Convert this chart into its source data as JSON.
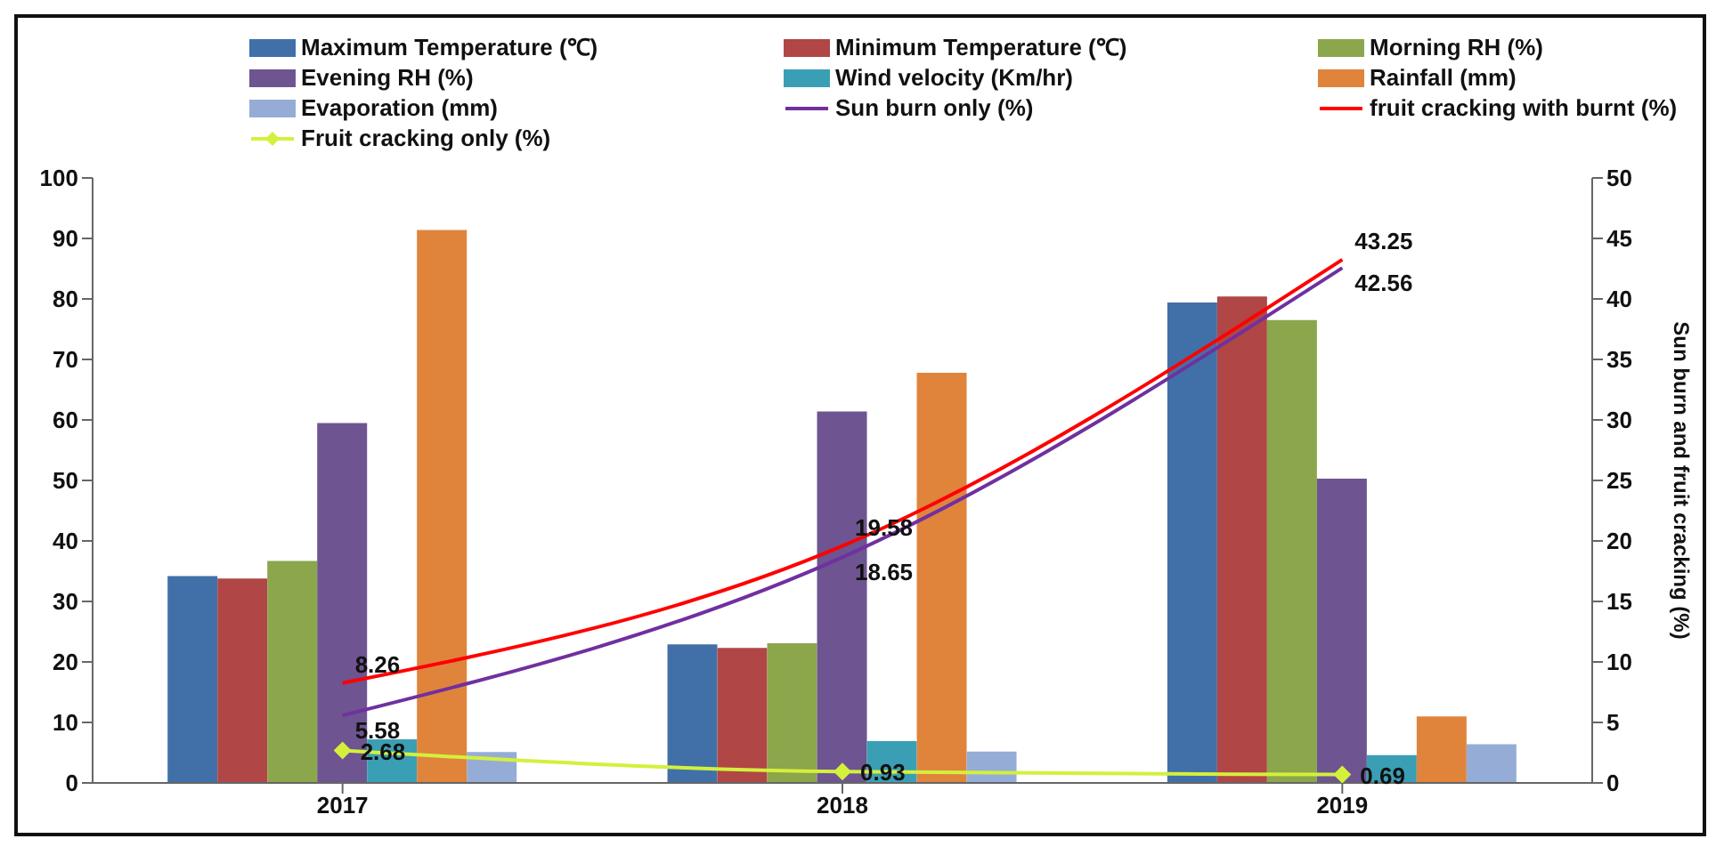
{
  "chart_data": {
    "type": "bar",
    "y2label": "Sun burn and fruit cracking (%)",
    "categories": [
      "2017",
      "2018",
      "2019"
    ],
    "ylim": [
      0,
      100
    ],
    "yticks": [
      0,
      10,
      20,
      30,
      40,
      50,
      60,
      70,
      80,
      90,
      100
    ],
    "y2lim": [
      0,
      50
    ],
    "y2ticks": [
      0,
      5,
      10,
      15,
      20,
      25,
      30,
      35,
      40,
      45,
      50
    ],
    "grid": false,
    "legend": "top",
    "series": [
      {
        "name": "Maximum Temperature (℃)",
        "color": "#4170a8",
        "values": [
          34.2,
          22.9,
          79.4
        ]
      },
      {
        "name": "Minimum Temperature (℃)",
        "color": "#b04645",
        "values": [
          33.8,
          22.3,
          80.4
        ]
      },
      {
        "name": "Morning RH (%)",
        "color": "#8ca64c",
        "values": [
          36.7,
          23.1,
          76.5
        ]
      },
      {
        "name": "Evening RH (%)",
        "color": "#6e5490",
        "values": [
          59.5,
          61.4,
          50.3
        ]
      },
      {
        "name": "Wind velocity (Km/hr)",
        "color": "#3a9fb5",
        "values": [
          7.2,
          6.9,
          4.6
        ]
      },
      {
        "name": "Rainfall (mm)",
        "color": "#e0843c",
        "values": [
          91.4,
          67.8,
          11.0
        ]
      },
      {
        "name": "Evaporation (mm)",
        "color": "#95add6",
        "values": [
          5.1,
          5.2,
          6.4
        ]
      },
      {
        "name": "Sun burn only  (%)",
        "type": "line",
        "axis": "y2",
        "color": "#7030a0",
        "marker": "none",
        "values": [
          5.58,
          18.65,
          42.56
        ],
        "value_labels": [
          "5.58",
          "18.65",
          "42.56"
        ]
      },
      {
        "name": "fruit cracking with burnt  (%)",
        "type": "line",
        "axis": "y2",
        "color": "#ff0000",
        "marker": "none",
        "values": [
          8.26,
          19.58,
          43.25
        ],
        "value_labels": [
          "8.26",
          "19.58",
          "43.25"
        ]
      },
      {
        "name": "Fruit cracking only (%)",
        "type": "line",
        "axis": "y2",
        "color": "#d4f03c",
        "marker": "diamond",
        "values": [
          2.68,
          0.93,
          0.69
        ],
        "value_labels": [
          "2.68",
          "0.93",
          "0.69"
        ]
      }
    ]
  }
}
